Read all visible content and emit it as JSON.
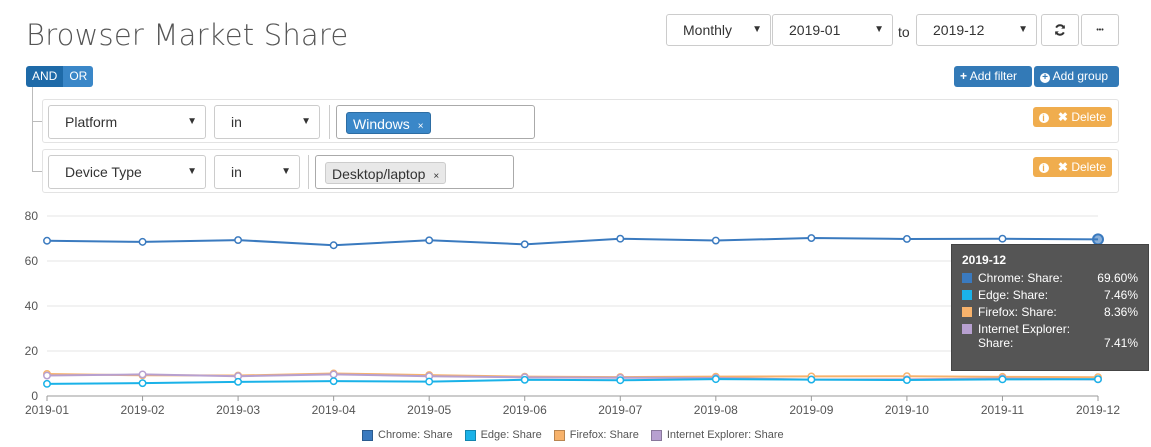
{
  "header": {
    "title": "Browser Market Share",
    "granularity": "Monthly",
    "from": "2019-01",
    "to_label": "to",
    "to": "2019-12",
    "refresh_icon": "refresh-icon",
    "more_icon": "ellipsis-icon",
    "more_label": "•••"
  },
  "filters": {
    "and_label": "AND",
    "or_label": "OR",
    "add_filter_label": "Add filter",
    "add_group_label": "Add group",
    "delete_label": "Delete",
    "rules": [
      {
        "field": "Platform",
        "operator": "in",
        "value": "Windows"
      },
      {
        "field": "Device Type",
        "operator": "in",
        "value": "Desktop/laptop"
      }
    ]
  },
  "chart_data": {
    "type": "line",
    "x": [
      "2019-01",
      "2019-02",
      "2019-03",
      "2019-04",
      "2019-05",
      "2019-06",
      "2019-07",
      "2019-08",
      "2019-09",
      "2019-10",
      "2019-11",
      "2019-12"
    ],
    "ylim": [
      0,
      80
    ],
    "yticks": [
      0,
      20,
      40,
      60,
      80
    ],
    "grid": true,
    "legend": "bottom",
    "series": [
      {
        "name": "Chrome: Share",
        "color": "#3a7abf",
        "values": [
          69.0,
          68.5,
          69.3,
          67.0,
          69.2,
          67.4,
          69.9,
          69.1,
          70.2,
          69.8,
          69.9,
          69.6
        ]
      },
      {
        "name": "Edge: Share",
        "color": "#1ab2e8",
        "values": [
          5.4,
          5.7,
          6.3,
          6.6,
          6.4,
          7.2,
          7.0,
          7.5,
          7.3,
          7.1,
          7.4,
          7.46
        ]
      },
      {
        "name": "Firefox: Share",
        "color": "#f7b26b",
        "values": [
          9.8,
          9.2,
          9.1,
          10.0,
          9.3,
          8.6,
          8.4,
          8.6,
          8.7,
          8.8,
          8.5,
          8.36
        ]
      },
      {
        "name": "Internet Explorer: Share",
        "color": "#b7a0d0",
        "values": [
          9.1,
          9.6,
          8.8,
          9.6,
          8.8,
          8.3,
          8.1,
          8.0,
          7.3,
          7.4,
          7.8,
          7.41
        ]
      }
    ]
  },
  "tooltip": {
    "title": "2019-12",
    "rows": [
      {
        "name": "Chrome: Share:",
        "value": "69.60%",
        "color": "#3a7abf"
      },
      {
        "name": "Edge: Share:",
        "value": "7.46%",
        "color": "#1ab2e8"
      },
      {
        "name": "Firefox: Share:",
        "value": "8.36%",
        "color": "#f7b26b"
      },
      {
        "name": "Internet Explorer: Share:",
        "value": "7.41%",
        "color": "#b7a0d0"
      }
    ]
  }
}
